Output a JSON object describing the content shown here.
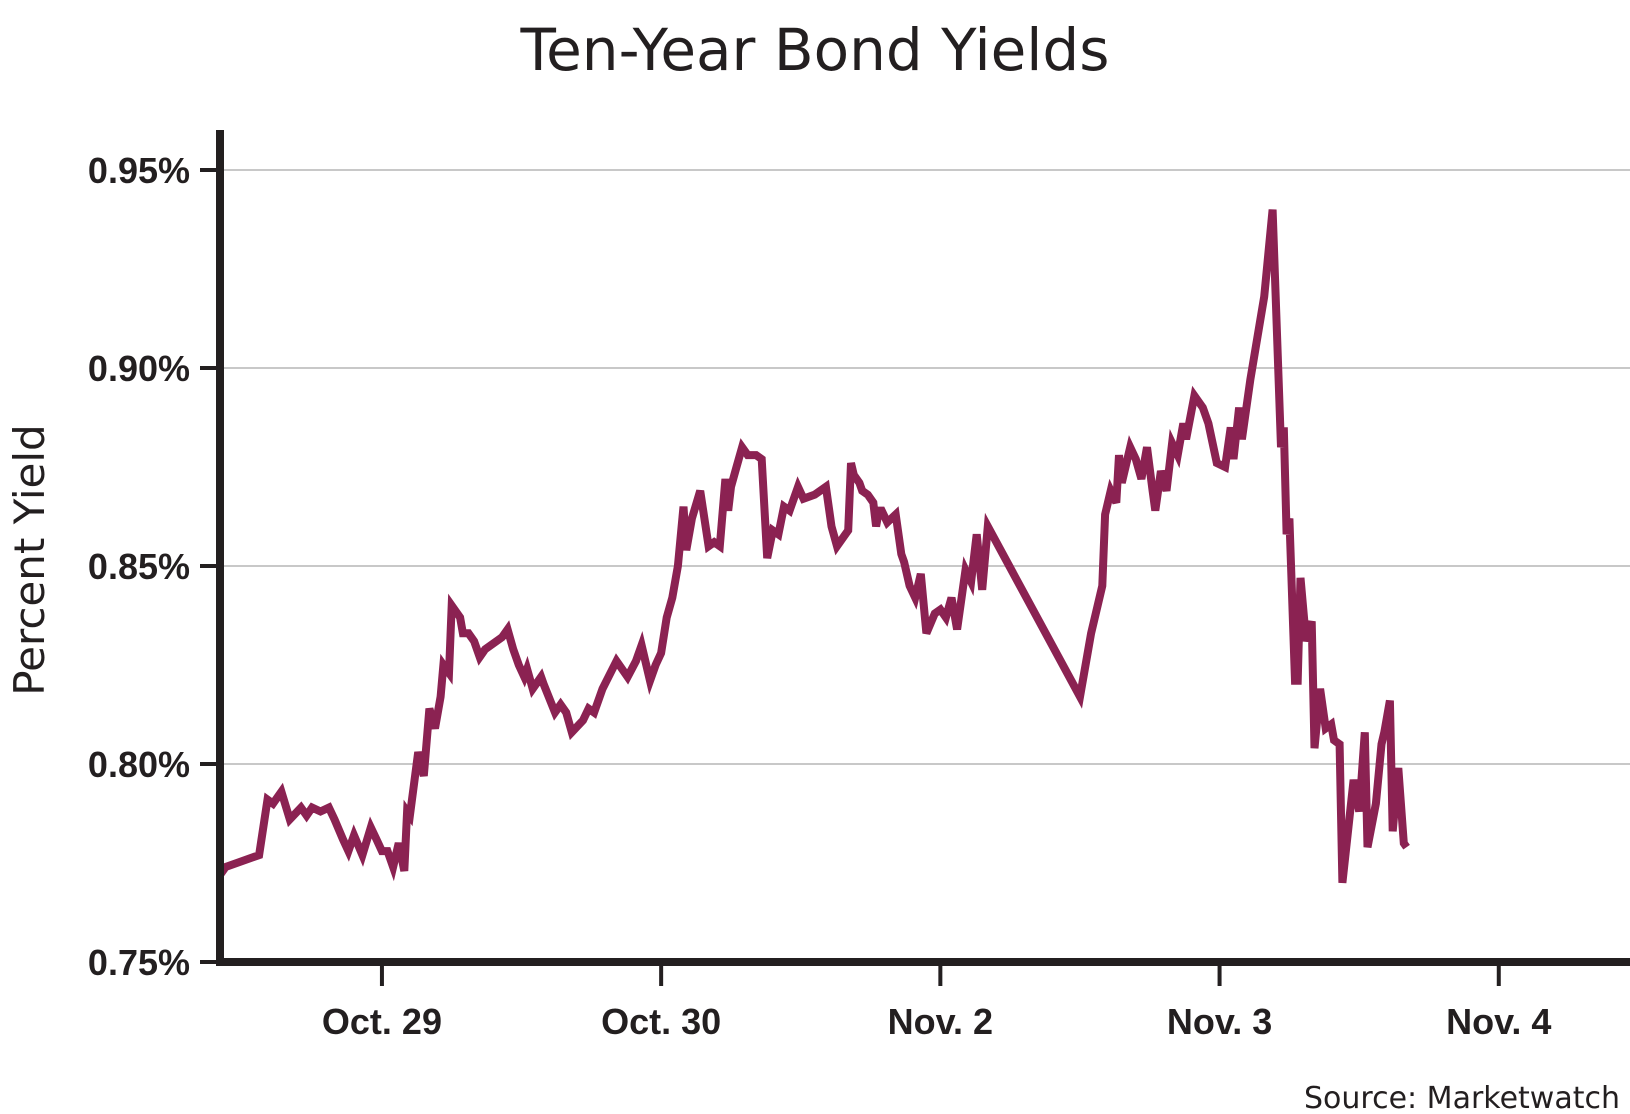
{
  "chart_data": {
    "type": "line",
    "title": "Ten-Year Bond Yields",
    "ylabel": "Percent Yield",
    "xlabel": "",
    "source": "Source: Marketwatch",
    "ylim": [
      0.75,
      0.95
    ],
    "yticks": [
      {
        "value": 0.75,
        "label": "0.75%"
      },
      {
        "value": 0.8,
        "label": "0.80%"
      },
      {
        "value": 0.85,
        "label": "0.85%"
      },
      {
        "value": 0.9,
        "label": "0.90%"
      },
      {
        "value": 0.95,
        "label": "0.95%"
      }
    ],
    "xlim": [
      -0.58,
      4.47
    ],
    "xticks": [
      {
        "value": 0,
        "label": "Oct. 29"
      },
      {
        "value": 1,
        "label": "Oct. 30"
      },
      {
        "value": 2,
        "label": "Nov. 2"
      },
      {
        "value": 3,
        "label": "Nov. 3"
      },
      {
        "value": 4,
        "label": "Nov. 4"
      }
    ],
    "grid": true,
    "series_color": "#8b2252",
    "series": [
      {
        "points": [
          [
            -0.58,
            0.772
          ],
          [
            -0.56,
            0.774
          ],
          [
            -0.52,
            0.775
          ],
          [
            -0.44,
            0.777
          ],
          [
            -0.41,
            0.791
          ],
          [
            -0.39,
            0.79
          ],
          [
            -0.36,
            0.793
          ],
          [
            -0.33,
            0.786
          ],
          [
            -0.29,
            0.789
          ],
          [
            -0.27,
            0.787
          ],
          [
            -0.25,
            0.789
          ],
          [
            -0.22,
            0.788
          ],
          [
            -0.19,
            0.789
          ],
          [
            -0.17,
            0.786
          ],
          [
            -0.14,
            0.781
          ],
          [
            -0.12,
            0.778
          ],
          [
            -0.1,
            0.782
          ],
          [
            -0.07,
            0.777
          ],
          [
            -0.04,
            0.784
          ],
          [
            -0.02,
            0.781
          ],
          [
            0.0,
            0.778
          ],
          [
            0.02,
            0.778
          ],
          [
            0.04,
            0.774
          ],
          [
            0.06,
            0.78
          ],
          [
            0.08,
            0.773
          ],
          [
            0.09,
            0.788
          ],
          [
            0.1,
            0.787
          ],
          [
            0.13,
            0.803
          ],
          [
            0.15,
            0.797
          ],
          [
            0.17,
            0.814
          ],
          [
            0.19,
            0.809
          ],
          [
            0.21,
            0.817
          ],
          [
            0.22,
            0.825
          ],
          [
            0.24,
            0.823
          ],
          [
            0.25,
            0.84
          ],
          [
            0.28,
            0.837
          ],
          [
            0.29,
            0.833
          ],
          [
            0.31,
            0.833
          ],
          [
            0.33,
            0.831
          ],
          [
            0.35,
            0.827
          ],
          [
            0.37,
            0.829
          ],
          [
            0.39,
            0.83
          ],
          [
            0.43,
            0.832
          ],
          [
            0.45,
            0.834
          ],
          [
            0.47,
            0.829
          ],
          [
            0.49,
            0.825
          ],
          [
            0.51,
            0.822
          ],
          [
            0.52,
            0.824
          ],
          [
            0.54,
            0.819
          ],
          [
            0.57,
            0.822
          ],
          [
            0.58,
            0.82
          ],
          [
            0.62,
            0.813
          ],
          [
            0.64,
            0.815
          ],
          [
            0.66,
            0.813
          ],
          [
            0.68,
            0.808
          ],
          [
            0.72,
            0.811
          ],
          [
            0.74,
            0.814
          ],
          [
            0.76,
            0.813
          ],
          [
            0.79,
            0.819
          ],
          [
            0.84,
            0.826
          ],
          [
            0.88,
            0.822
          ],
          [
            0.91,
            0.826
          ],
          [
            0.93,
            0.83
          ],
          [
            0.96,
            0.821
          ],
          [
            0.98,
            0.825
          ],
          [
            1.0,
            0.828
          ],
          [
            1.02,
            0.837
          ],
          [
            1.04,
            0.842
          ],
          [
            1.06,
            0.85
          ],
          [
            1.08,
            0.865
          ],
          [
            1.09,
            0.854
          ],
          [
            1.11,
            0.862
          ],
          [
            1.14,
            0.869
          ],
          [
            1.17,
            0.855
          ],
          [
            1.19,
            0.856
          ],
          [
            1.21,
            0.855
          ],
          [
            1.23,
            0.872
          ],
          [
            1.24,
            0.864
          ],
          [
            1.25,
            0.87
          ],
          [
            1.27,
            0.875
          ],
          [
            1.29,
            0.88
          ],
          [
            1.31,
            0.878
          ],
          [
            1.34,
            0.878
          ],
          [
            1.36,
            0.877
          ],
          [
            1.38,
            0.852
          ],
          [
            1.4,
            0.859
          ],
          [
            1.42,
            0.858
          ],
          [
            1.44,
            0.865
          ],
          [
            1.46,
            0.864
          ],
          [
            1.49,
            0.87
          ],
          [
            1.51,
            0.867
          ],
          [
            1.55,
            0.868
          ],
          [
            1.59,
            0.87
          ],
          [
            1.61,
            0.86
          ],
          [
            1.63,
            0.855
          ],
          [
            1.66,
            0.858
          ],
          [
            1.67,
            0.859
          ],
          [
            1.68,
            0.876
          ],
          [
            1.69,
            0.873
          ],
          [
            1.71,
            0.871
          ],
          [
            1.72,
            0.869
          ],
          [
            1.74,
            0.868
          ],
          [
            1.76,
            0.866
          ],
          [
            1.77,
            0.86
          ],
          [
            1.78,
            0.864
          ],
          [
            1.79,
            0.864
          ],
          [
            1.81,
            0.861
          ],
          [
            1.84,
            0.863
          ],
          [
            1.86,
            0.853
          ],
          [
            1.87,
            0.851
          ],
          [
            1.89,
            0.845
          ],
          [
            1.91,
            0.842
          ],
          [
            1.93,
            0.848
          ],
          [
            1.95,
            0.833
          ],
          [
            1.98,
            0.838
          ],
          [
            2.0,
            0.839
          ],
          [
            2.02,
            0.837
          ],
          [
            2.04,
            0.842
          ],
          [
            2.06,
            0.834
          ],
          [
            2.09,
            0.849
          ],
          [
            2.11,
            0.846
          ],
          [
            2.13,
            0.858
          ],
          [
            2.15,
            0.844
          ],
          [
            2.17,
            0.86
          ],
          [
            2.5,
            0.817
          ],
          [
            2.54,
            0.833
          ],
          [
            2.58,
            0.845
          ],
          [
            2.59,
            0.863
          ],
          [
            2.61,
            0.869
          ],
          [
            2.63,
            0.866
          ],
          [
            2.64,
            0.878
          ],
          [
            2.65,
            0.871
          ],
          [
            2.68,
            0.88
          ],
          [
            2.7,
            0.877
          ],
          [
            2.72,
            0.872
          ],
          [
            2.74,
            0.88
          ],
          [
            2.76,
            0.869
          ],
          [
            2.77,
            0.864
          ],
          [
            2.79,
            0.874
          ],
          [
            2.81,
            0.869
          ],
          [
            2.83,
            0.881
          ],
          [
            2.85,
            0.878
          ],
          [
            2.87,
            0.886
          ],
          [
            2.88,
            0.882
          ],
          [
            2.91,
            0.893
          ],
          [
            2.94,
            0.89
          ],
          [
            2.96,
            0.886
          ],
          [
            2.99,
            0.876
          ],
          [
            3.02,
            0.875
          ],
          [
            3.04,
            0.885
          ],
          [
            3.05,
            0.877
          ],
          [
            3.07,
            0.89
          ],
          [
            3.08,
            0.882
          ],
          [
            3.11,
            0.897
          ],
          [
            3.16,
            0.918
          ],
          [
            3.19,
            0.94
          ],
          [
            3.22,
            0.88
          ],
          [
            3.23,
            0.885
          ],
          [
            3.24,
            0.858
          ],
          [
            3.25,
            0.862
          ],
          [
            3.27,
            0.821
          ],
          [
            3.28,
            0.821
          ],
          [
            3.29,
            0.847
          ],
          [
            3.31,
            0.831
          ],
          [
            3.33,
            0.836
          ],
          [
            3.34,
            0.804
          ],
          [
            3.36,
            0.819
          ],
          [
            3.38,
            0.809
          ],
          [
            3.4,
            0.81
          ],
          [
            3.41,
            0.806
          ],
          [
            3.43,
            0.805
          ],
          [
            3.44,
            0.77
          ],
          [
            3.48,
            0.796
          ],
          [
            3.5,
            0.788
          ],
          [
            3.52,
            0.808
          ],
          [
            3.53,
            0.779
          ],
          [
            3.56,
            0.79
          ],
          [
            3.58,
            0.805
          ],
          [
            3.59,
            0.808
          ],
          [
            3.61,
            0.816
          ],
          [
            3.62,
            0.783
          ],
          [
            3.64,
            0.799
          ],
          [
            3.66,
            0.78
          ],
          [
            3.67,
            0.779
          ]
        ]
      }
    ]
  }
}
